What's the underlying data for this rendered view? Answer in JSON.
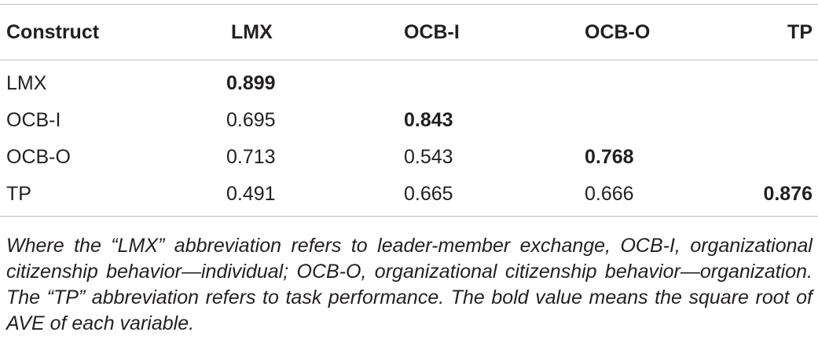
{
  "table": {
    "headers": [
      "Construct",
      "LMX",
      "OCB-I",
      "OCB-O",
      "TP"
    ],
    "rows": [
      {
        "label": "LMX",
        "cells": [
          "0.899",
          "",
          "",
          ""
        ],
        "bold_index": 0
      },
      {
        "label": "OCB-I",
        "cells": [
          "0.695",
          "0.843",
          "",
          ""
        ],
        "bold_index": 1
      },
      {
        "label": "OCB-O",
        "cells": [
          "0.713",
          "0.543",
          "0.768",
          ""
        ],
        "bold_index": 2
      },
      {
        "label": "TP",
        "cells": [
          "0.491",
          "0.665",
          "0.666",
          "0.876"
        ],
        "bold_index": 3
      }
    ]
  },
  "note": "Where the “LMX” abbreviation refers to leader-member exchange, OCB-I, organizational citizenship behavior—individual; OCB-O, organizational citizenship behavior—organization. The “TP” abbreviation refers to task performance. The bold value means the square root of AVE of each variable."
}
